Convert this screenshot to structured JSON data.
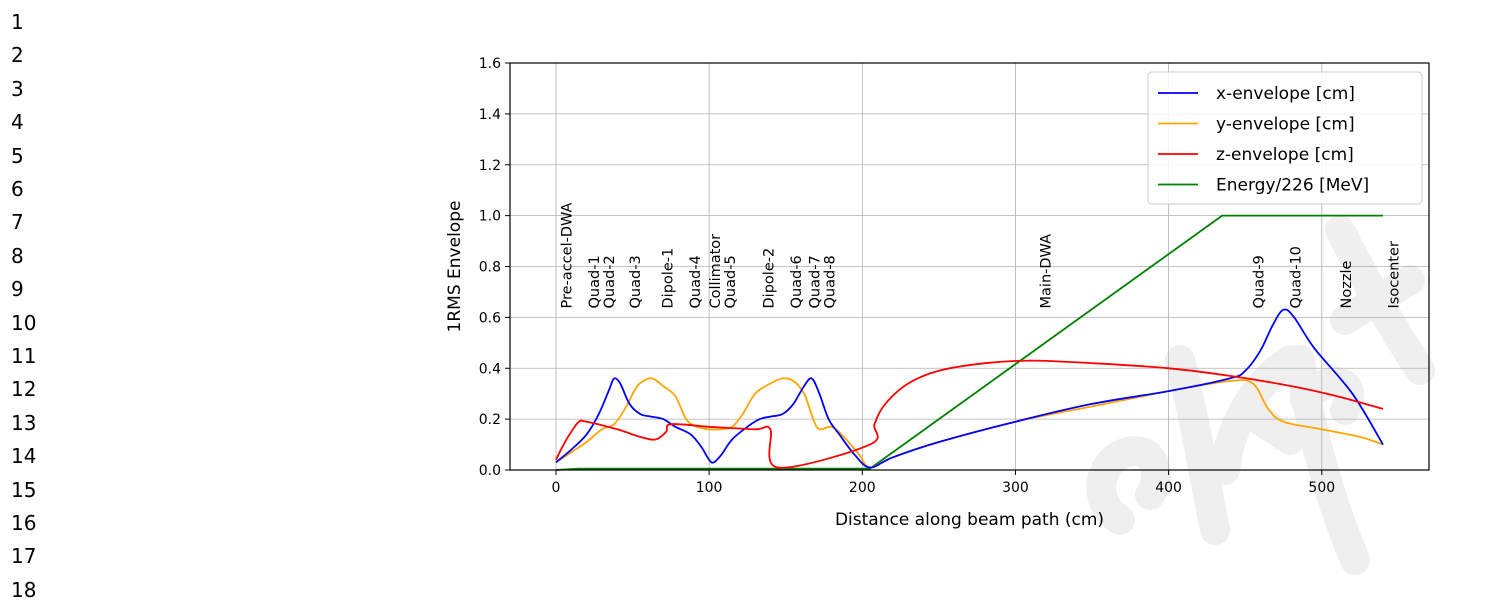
{
  "margin_line_numbers": [
    "1",
    "2",
    "3",
    "4",
    "5",
    "6",
    "7",
    "8",
    "9",
    "10",
    "11",
    "12",
    "13",
    "14",
    "15",
    "16",
    "17",
    "18"
  ],
  "watermark": {
    "text": "script",
    "color": "#000000"
  },
  "chart_data": {
    "type": "line",
    "title": "",
    "xlabel": "Distance along beam path (cm)",
    "ylabel": "1RMS Envelope",
    "xlim": [
      -30,
      570
    ],
    "ylim": [
      0.0,
      1.6
    ],
    "xticks": [
      0,
      100,
      200,
      300,
      400,
      500
    ],
    "yticks": [
      0.0,
      0.2,
      0.4,
      0.6,
      0.8,
      1.0,
      1.2,
      1.4,
      1.6
    ],
    "xtick_labels": [
      "0",
      "100",
      "200",
      "300",
      "400",
      "500"
    ],
    "ytick_labels": [
      "0.0",
      "0.2",
      "0.4",
      "0.6",
      "0.8",
      "1.0",
      "1.2",
      "1.4",
      "1.6"
    ],
    "grid": true,
    "legend_position": "top-right",
    "series": [
      {
        "name": "x-envelope [cm]",
        "color": "#0000ff",
        "points": [
          [
            0,
            0.03
          ],
          [
            10,
            0.08
          ],
          [
            20,
            0.14
          ],
          [
            28,
            0.22
          ],
          [
            35,
            0.32
          ],
          [
            38,
            0.36
          ],
          [
            42,
            0.34
          ],
          [
            48,
            0.26
          ],
          [
            55,
            0.22
          ],
          [
            62,
            0.21
          ],
          [
            70,
            0.2
          ],
          [
            78,
            0.17
          ],
          [
            88,
            0.14
          ],
          [
            95,
            0.09
          ],
          [
            100,
            0.04
          ],
          [
            103,
            0.03
          ],
          [
            108,
            0.06
          ],
          [
            115,
            0.12
          ],
          [
            125,
            0.17
          ],
          [
            133,
            0.2
          ],
          [
            140,
            0.21
          ],
          [
            148,
            0.22
          ],
          [
            155,
            0.26
          ],
          [
            162,
            0.33
          ],
          [
            167,
            0.36
          ],
          [
            172,
            0.3
          ],
          [
            178,
            0.2
          ],
          [
            185,
            0.14
          ],
          [
            195,
            0.06
          ],
          [
            205,
            0.01
          ],
          [
            220,
            0.05
          ],
          [
            250,
            0.11
          ],
          [
            300,
            0.19
          ],
          [
            350,
            0.26
          ],
          [
            400,
            0.31
          ],
          [
            440,
            0.36
          ],
          [
            450,
            0.39
          ],
          [
            460,
            0.47
          ],
          [
            468,
            0.57
          ],
          [
            475,
            0.63
          ],
          [
            482,
            0.6
          ],
          [
            495,
            0.48
          ],
          [
            520,
            0.3
          ],
          [
            540,
            0.1
          ]
        ]
      },
      {
        "name": "y-envelope [cm]",
        "color": "#ffa500",
        "points": [
          [
            0,
            0.03
          ],
          [
            10,
            0.07
          ],
          [
            20,
            0.11
          ],
          [
            30,
            0.16
          ],
          [
            38,
            0.18
          ],
          [
            45,
            0.24
          ],
          [
            52,
            0.32
          ],
          [
            57,
            0.35
          ],
          [
            63,
            0.36
          ],
          [
            70,
            0.33
          ],
          [
            78,
            0.29
          ],
          [
            85,
            0.2
          ],
          [
            92,
            0.17
          ],
          [
            100,
            0.16
          ],
          [
            108,
            0.16
          ],
          [
            115,
            0.17
          ],
          [
            122,
            0.22
          ],
          [
            130,
            0.3
          ],
          [
            140,
            0.34
          ],
          [
            148,
            0.36
          ],
          [
            155,
            0.35
          ],
          [
            162,
            0.3
          ],
          [
            168,
            0.2
          ],
          [
            172,
            0.16
          ],
          [
            180,
            0.17
          ],
          [
            188,
            0.13
          ],
          [
            198,
            0.06
          ],
          [
            205,
            0.01
          ],
          [
            220,
            0.05
          ],
          [
            250,
            0.11
          ],
          [
            300,
            0.19
          ],
          [
            350,
            0.25
          ],
          [
            400,
            0.31
          ],
          [
            440,
            0.35
          ],
          [
            455,
            0.34
          ],
          [
            465,
            0.24
          ],
          [
            475,
            0.19
          ],
          [
            500,
            0.16
          ],
          [
            525,
            0.13
          ],
          [
            540,
            0.1
          ]
        ]
      },
      {
        "name": "z-envelope [cm]",
        "color": "#ff0000",
        "points": [
          [
            0,
            0.04
          ],
          [
            5,
            0.1
          ],
          [
            10,
            0.15
          ],
          [
            15,
            0.19
          ],
          [
            20,
            0.19
          ],
          [
            40,
            0.16
          ],
          [
            55,
            0.13
          ],
          [
            65,
            0.12
          ],
          [
            72,
            0.15
          ],
          [
            75,
            0.18
          ],
          [
            100,
            0.17
          ],
          [
            130,
            0.16
          ],
          [
            140,
            0.16
          ],
          [
            145,
            0.01
          ],
          [
            205,
            0.1
          ],
          [
            208,
            0.18
          ],
          [
            215,
            0.26
          ],
          [
            230,
            0.34
          ],
          [
            250,
            0.39
          ],
          [
            280,
            0.42
          ],
          [
            310,
            0.43
          ],
          [
            350,
            0.42
          ],
          [
            400,
            0.4
          ],
          [
            440,
            0.37
          ],
          [
            480,
            0.33
          ],
          [
            510,
            0.29
          ],
          [
            540,
            0.24
          ]
        ]
      },
      {
        "name": "Energy/226 [MeV]",
        "color": "#008000",
        "points": [
          [
            0,
            0.0
          ],
          [
            15,
            0.005
          ],
          [
            100,
            0.005
          ],
          [
            205,
            0.005
          ],
          [
            435,
            1.0
          ],
          [
            540,
            1.0
          ]
        ]
      }
    ],
    "annotations": [
      {
        "label": "Pre-accel-DWA",
        "x": 10
      },
      {
        "label": "Quad-1",
        "x": 28
      },
      {
        "label": "Quad-2",
        "x": 38
      },
      {
        "label": "Quad-3",
        "x": 55
      },
      {
        "label": "Dipole-1",
        "x": 76
      },
      {
        "label": "Quad-4",
        "x": 94
      },
      {
        "label": "Collimator",
        "x": 107
      },
      {
        "label": "Quad-5",
        "x": 117
      },
      {
        "label": "Dipole-2",
        "x": 142
      },
      {
        "label": "Quad-6",
        "x": 160
      },
      {
        "label": "Quad-7",
        "x": 172
      },
      {
        "label": "Quad-8",
        "x": 182
      },
      {
        "label": "Main-DWA",
        "x": 323
      },
      {
        "label": "Quad-9",
        "x": 462
      },
      {
        "label": "Quad-10",
        "x": 486
      },
      {
        "label": "Nozzle",
        "x": 519
      },
      {
        "label": "Isocenter",
        "x": 550
      }
    ]
  }
}
